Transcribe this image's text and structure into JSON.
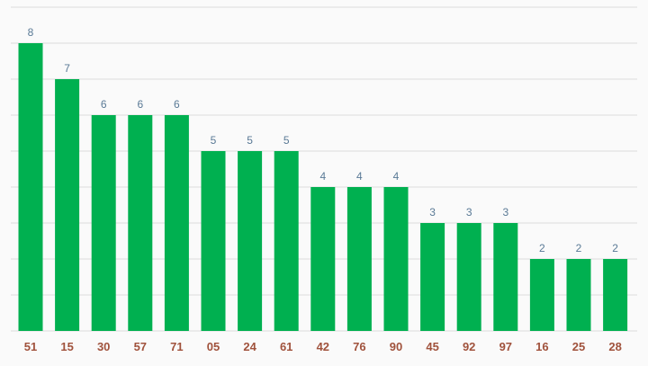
{
  "chart_data": {
    "type": "bar",
    "categories": [
      "51",
      "15",
      "30",
      "57",
      "71",
      "05",
      "24",
      "61",
      "42",
      "76",
      "90",
      "45",
      "92",
      "97",
      "16",
      "25",
      "28"
    ],
    "values": [
      8,
      7,
      6,
      6,
      6,
      5,
      5,
      5,
      4,
      4,
      4,
      3,
      3,
      3,
      2,
      2,
      2
    ],
    "ylim": [
      0,
      9
    ],
    "grid": true,
    "colors": {
      "bar": "#00b050",
      "value_label": "#5a7a96",
      "category_label": "#a0523c",
      "grid": "#dcdcdc",
      "background": "#fafafa"
    }
  }
}
